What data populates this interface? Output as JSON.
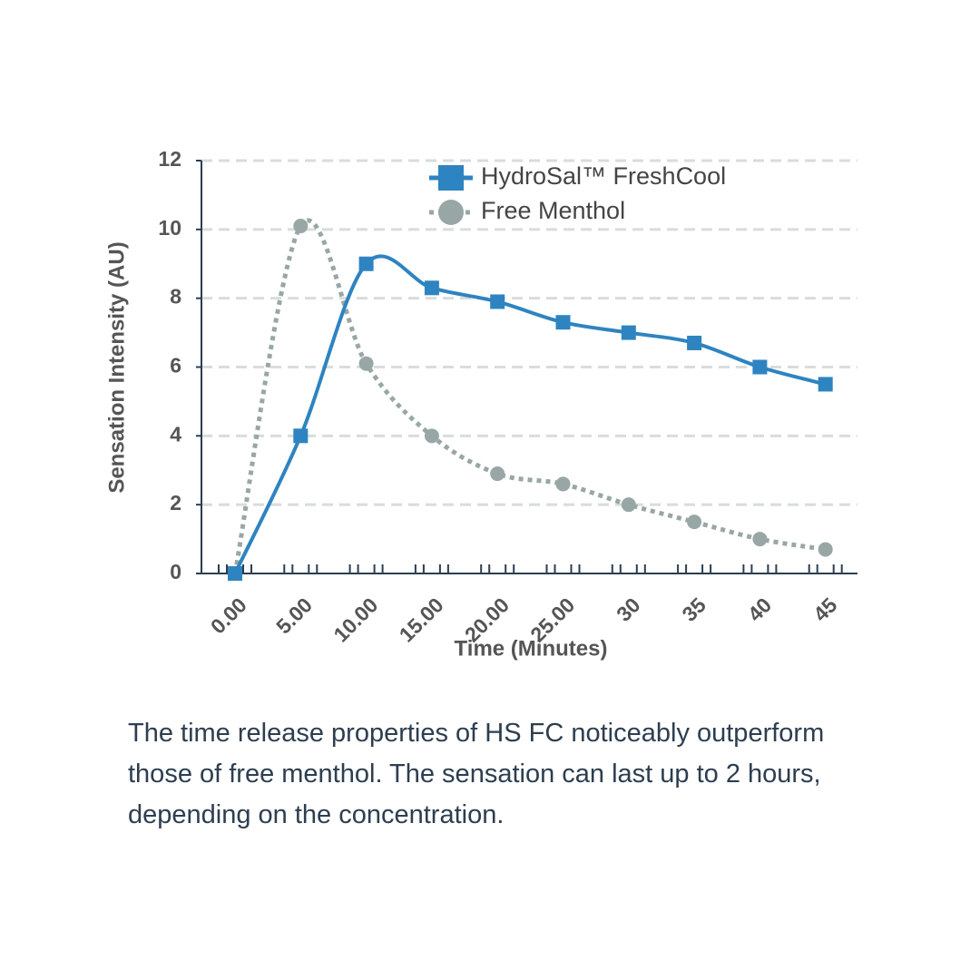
{
  "chart_data": {
    "type": "line",
    "xlabel": "Time (Minutes)",
    "ylabel": "Sensation Intensity (AU)",
    "categories": [
      "0.00",
      "5.00",
      "10.00",
      "15.00",
      "20.00",
      "25.00",
      "30",
      "35",
      "40",
      "45"
    ],
    "series": [
      {
        "name": "HydroSal™ FreshCool",
        "color": "#2e84c0",
        "marker": "square",
        "dash": "solid",
        "values": [
          0,
          4,
          9,
          8.3,
          7.9,
          7.3,
          7,
          6.7,
          6,
          5.5
        ]
      },
      {
        "name": "Free Menthol",
        "color": "#98a7a6",
        "marker": "circle",
        "dash": "dotted",
        "values": [
          0,
          10.1,
          6.1,
          4,
          2.9,
          2.6,
          2,
          1.5,
          1,
          0.7
        ]
      }
    ],
    "ylim": [
      0,
      12
    ],
    "yticks": [
      0,
      2,
      4,
      6,
      8,
      10,
      12
    ],
    "grid": true
  },
  "caption": "The time release properties of HS FC noticeably outperform those of free menthol. The sensation can last up to 2 hours, depending on the concentration."
}
